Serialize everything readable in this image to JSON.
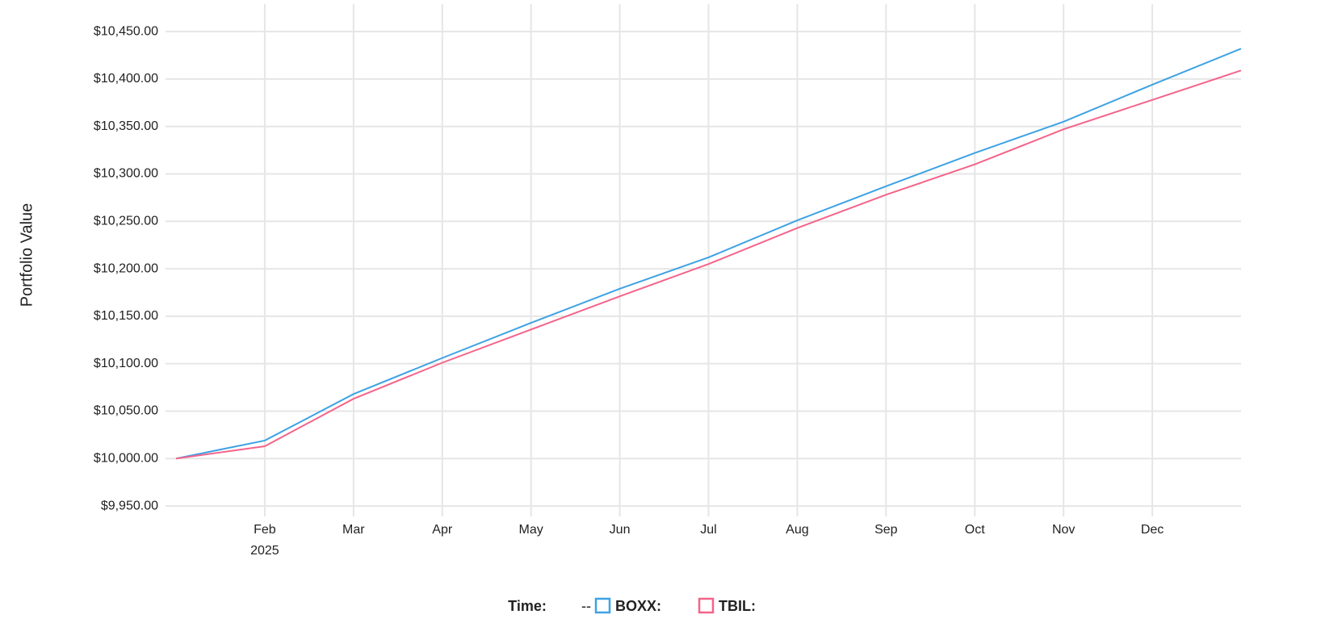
{
  "chart_data": {
    "type": "line",
    "y_label": "Portfolio Value",
    "categories": [
      null,
      "Feb",
      "Mar",
      "Apr",
      "May",
      "Jun",
      "Jul",
      "Aug",
      "Sep",
      "Oct",
      "Nov",
      "Dec",
      null
    ],
    "year_label": "2025",
    "series": [
      {
        "name": "BOXX:",
        "color": "#3ea2e4",
        "values": [
          10000,
          10019,
          10068,
          10106,
          10143,
          10179,
          10212,
          10251,
          10287,
          10322,
          10355,
          10394,
          10432
        ]
      },
      {
        "name": "TBIL:",
        "color": "#f4648a",
        "values": [
          10000,
          10013,
          10063,
          10101,
          10136,
          10171,
          10205,
          10243,
          10278,
          10310,
          10347,
          10378,
          10409
        ]
      }
    ],
    "ylim": [
      9939,
      10479
    ],
    "yticks": [
      {
        "value": 9950,
        "label": "$9,950.00"
      },
      {
        "value": 10000,
        "label": "$10,000.00"
      },
      {
        "value": 10050,
        "label": "$10,050.00"
      },
      {
        "value": 10100,
        "label": "$10,100.00"
      },
      {
        "value": 10150,
        "label": "$10,150.00"
      },
      {
        "value": 10200,
        "label": "$10,200.00"
      },
      {
        "value": 10250,
        "label": "$10,250.00"
      },
      {
        "value": 10300,
        "label": "$10,300.00"
      },
      {
        "value": 10350,
        "label": "$10,350.00"
      },
      {
        "value": 10400,
        "label": "$10,400.00"
      },
      {
        "value": 10450,
        "label": "$10,450.00"
      }
    ],
    "grid": true,
    "legend": {
      "time_label": "Time:",
      "time_value": "--"
    }
  }
}
